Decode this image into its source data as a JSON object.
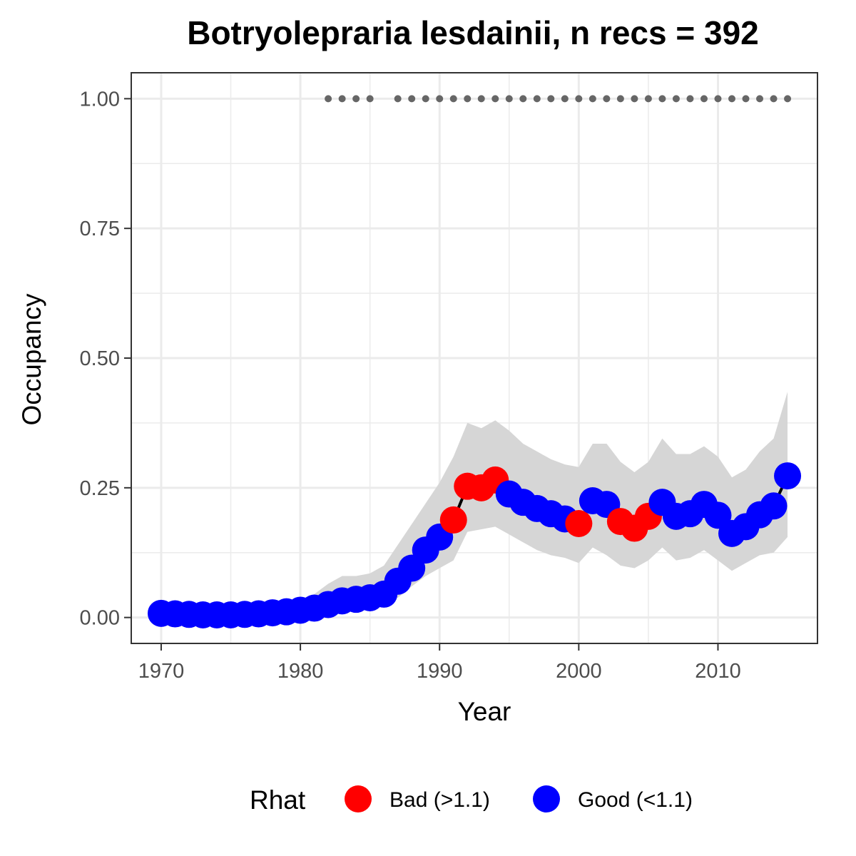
{
  "chart_data": {
    "type": "line",
    "title": "Botryolepraria lesdainii, n recs = 392",
    "xlabel": "Year",
    "ylabel": "Occupancy",
    "xlim": [
      1967.85,
      1917.15
    ],
    "ylim": [
      -0.05,
      1.05
    ],
    "x_ticks": [
      1970,
      1980,
      1990,
      2000,
      2010
    ],
    "x_tick_labels": [
      "1970",
      "1980",
      "1990",
      "2000",
      "2010"
    ],
    "y_ticks": [
      0,
      0.25,
      0.5,
      0.75,
      1.0
    ],
    "y_tick_labels": [
      "0.00",
      "0.25",
      "0.50",
      "0.75",
      "1.00"
    ],
    "grid": true,
    "colors": {
      "bad": "#ff0000",
      "good": "#0000ff",
      "ribbon": "#d6d6d6",
      "line": "#000000",
      "record_dots": "#666666",
      "grid": "#ebebeb",
      "panel_border": "#333333"
    },
    "series": [
      {
        "x": [
          1970,
          1971,
          1972,
          1973,
          1974,
          1975,
          1976,
          1977,
          1978,
          1979,
          1980,
          1981,
          1982,
          1983,
          1984,
          1985,
          1986,
          1987,
          1988,
          1989,
          1990,
          1991,
          1992,
          1993,
          1994,
          1995,
          1996,
          1997,
          1998,
          1999,
          2000,
          2001,
          2002,
          2003,
          2004,
          2005,
          2006,
          2007,
          2008,
          2009,
          2010,
          2011,
          2012,
          2013,
          2014,
          2015
        ],
        "occupancy": [
          0.008,
          0.007,
          0.006,
          0.005,
          0.005,
          0.005,
          0.006,
          0.007,
          0.009,
          0.011,
          0.014,
          0.018,
          0.025,
          0.032,
          0.035,
          0.038,
          0.045,
          0.07,
          0.095,
          0.13,
          0.155,
          0.188,
          0.253,
          0.25,
          0.265,
          0.238,
          0.222,
          0.21,
          0.2,
          0.19,
          0.181,
          0.225,
          0.218,
          0.185,
          0.172,
          0.195,
          0.222,
          0.195,
          0.2,
          0.218,
          0.197,
          0.162,
          0.175,
          0.198,
          0.215,
          0.273
        ],
        "lower": [
          0.0,
          0.0,
          0.0,
          0.0,
          0.0,
          0.0,
          0.0,
          0.0,
          0.0,
          0.0,
          0.002,
          0.005,
          0.01,
          0.015,
          0.018,
          0.02,
          0.025,
          0.038,
          0.06,
          0.08,
          0.095,
          0.11,
          0.165,
          0.17,
          0.175,
          0.16,
          0.145,
          0.13,
          0.12,
          0.115,
          0.105,
          0.135,
          0.12,
          0.1,
          0.095,
          0.11,
          0.135,
          0.11,
          0.115,
          0.13,
          0.11,
          0.09,
          0.105,
          0.12,
          0.125,
          0.155
        ],
        "upper": [
          0.025,
          0.022,
          0.02,
          0.02,
          0.02,
          0.02,
          0.02,
          0.022,
          0.025,
          0.03,
          0.035,
          0.045,
          0.065,
          0.08,
          0.08,
          0.085,
          0.1,
          0.14,
          0.18,
          0.22,
          0.26,
          0.31,
          0.375,
          0.365,
          0.38,
          0.36,
          0.335,
          0.32,
          0.305,
          0.295,
          0.29,
          0.335,
          0.335,
          0.3,
          0.28,
          0.3,
          0.345,
          0.315,
          0.315,
          0.33,
          0.31,
          0.27,
          0.285,
          0.32,
          0.345,
          0.435
        ],
        "rhat": [
          "good",
          "good",
          "good",
          "good",
          "good",
          "good",
          "good",
          "good",
          "good",
          "good",
          "good",
          "good",
          "good",
          "good",
          "good",
          "good",
          "good",
          "good",
          "good",
          "good",
          "good",
          "bad",
          "bad",
          "bad",
          "bad",
          "good",
          "good",
          "good",
          "good",
          "good",
          "bad",
          "good",
          "good",
          "bad",
          "bad",
          "bad",
          "good",
          "good",
          "good",
          "good",
          "good",
          "good",
          "good",
          "good",
          "good",
          "good"
        ]
      }
    ],
    "record_years": [
      1982,
      1983,
      1984,
      1985,
      1987,
      1988,
      1989,
      1990,
      1991,
      1992,
      1993,
      1994,
      1995,
      1996,
      1997,
      1998,
      1999,
      2000,
      2001,
      2002,
      2003,
      2004,
      2005,
      2006,
      2007,
      2008,
      2009,
      2010,
      2011,
      2012,
      2013,
      2014,
      2015
    ],
    "record_y": 1.0,
    "legend": {
      "title": "Rhat",
      "placement": "bottom",
      "entries": [
        {
          "key": "bad",
          "label": "Bad (>1.1)"
        },
        {
          "key": "good",
          "label": "Good (<1.1)"
        }
      ]
    }
  }
}
